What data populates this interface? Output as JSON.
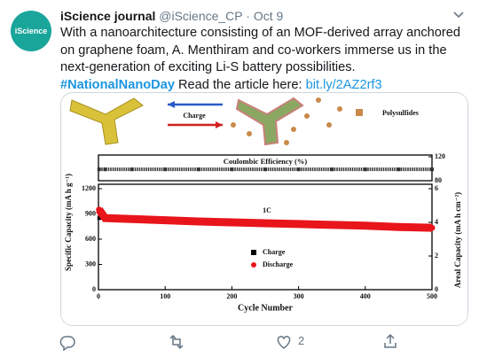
{
  "tweet": {
    "avatar_text": "iScience",
    "author": "iScience journal",
    "handle": "@iScience_CP",
    "separator": "·",
    "date": "Oct 9",
    "text": "With a nanoarchitecture consisting of an MOF-derived array anchored on graphene foam, A. Menthiram and co-workers immerse us in the next-generation of exciting Li-S battery possibilities.",
    "hashtag": "#NationalNanoDay",
    "text_after": "Read the article here:",
    "link": "bit.ly/2AZ2rf3",
    "like_count": "2"
  },
  "illustration": {
    "arrow_label": "Charge",
    "legend_label": "Polysulfides"
  },
  "chart_data": [
    {
      "type": "line",
      "title": "Coulombic Efficiency (%)",
      "x": [
        1,
        10,
        50,
        100,
        150,
        200,
        250,
        300,
        350,
        400,
        450,
        500
      ],
      "xlim": [
        0,
        500
      ],
      "y2lim": [
        80,
        120
      ],
      "y2ticks": [
        80,
        120
      ],
      "series": [
        {
          "name": "Coulombic Efficiency (%)",
          "color": "#333333",
          "axis": "y2",
          "values": [
            99,
            99,
            99,
            99,
            99,
            99,
            99,
            99,
            99,
            99,
            99,
            99
          ]
        }
      ]
    },
    {
      "type": "line",
      "xlabel": "Cycle Number",
      "ylabel": "Specific Capacity (mA h g⁻¹)",
      "y2label": "Areal Capacity (mA h cm⁻²)",
      "annotation": "1C",
      "x": [
        1,
        10,
        50,
        100,
        150,
        200,
        250,
        300,
        350,
        400,
        450,
        500
      ],
      "xlim": [
        0,
        500
      ],
      "xticks": [
        0,
        100,
        200,
        300,
        400,
        500
      ],
      "ylim": [
        0,
        1200
      ],
      "yticks": [
        0,
        300,
        600,
        900,
        1200
      ],
      "y2lim": [
        0,
        6
      ],
      "y2ticks": [
        0,
        2,
        4,
        6
      ],
      "series": [
        {
          "name": "Charge",
          "color": "#000000",
          "marker": "square",
          "values": [
            850,
            845,
            838,
            823,
            808,
            798,
            788,
            778,
            768,
            758,
            743,
            733
          ]
        },
        {
          "name": "Discharge",
          "color": "#e8151b",
          "marker": "circle",
          "values": [
            950,
            850,
            840,
            825,
            810,
            800,
            790,
            780,
            770,
            760,
            745,
            735
          ]
        }
      ]
    }
  ]
}
